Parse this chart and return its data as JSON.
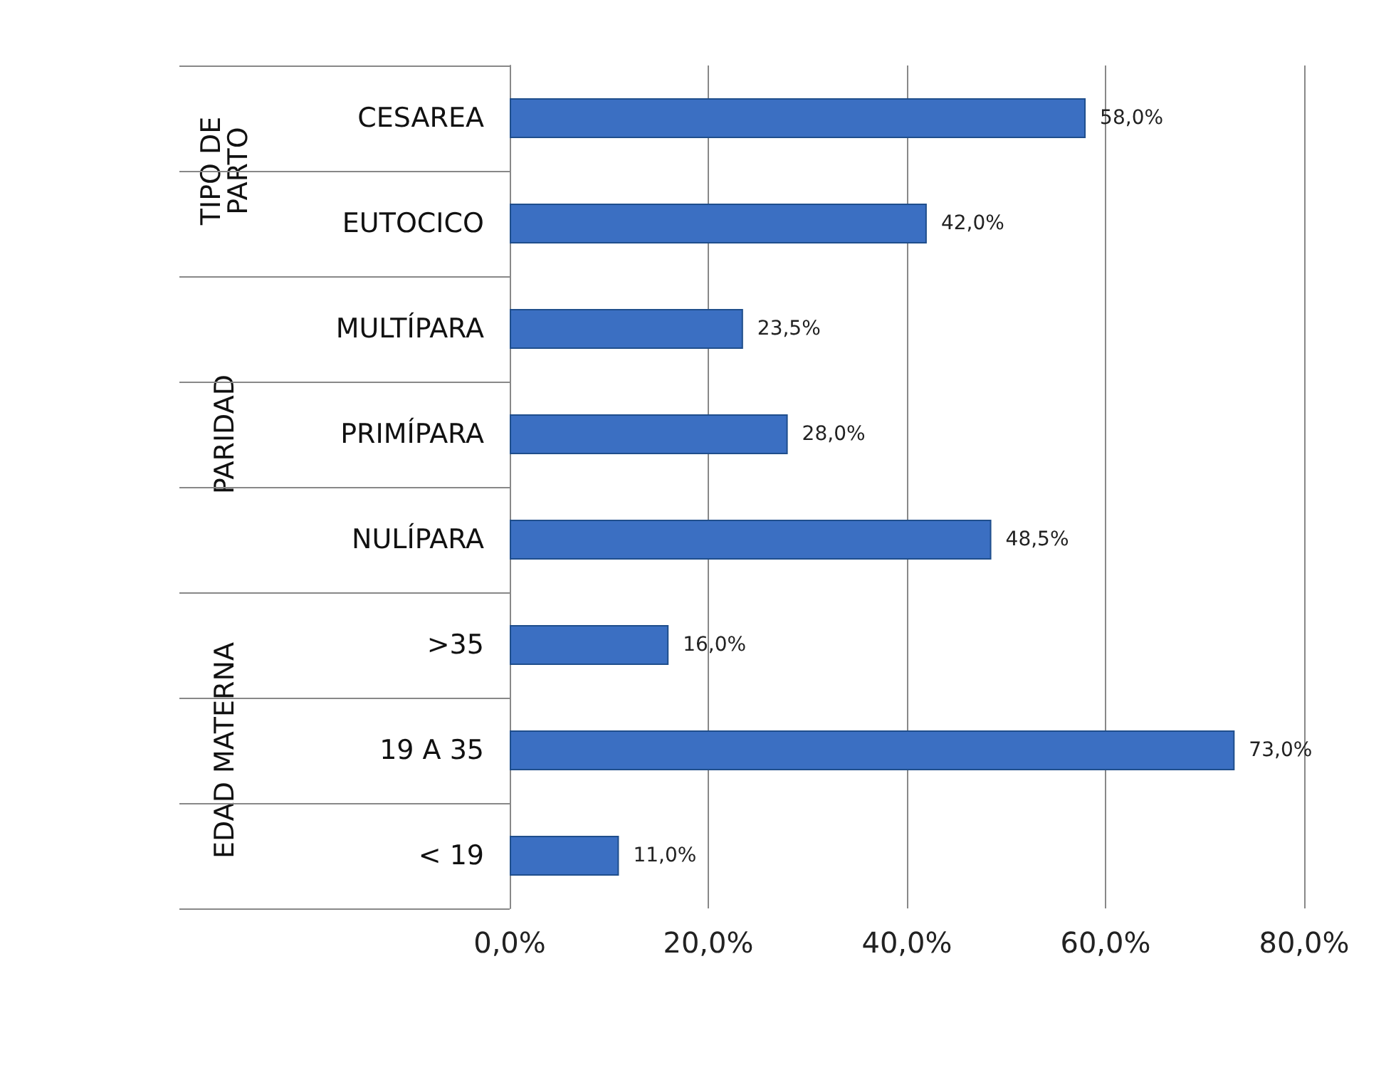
{
  "chart_data": {
    "type": "bar",
    "orientation": "horizontal",
    "categories": [
      "CESAREA",
      "EUTOCICO",
      "MULTÍPARA",
      "PRIMÍPARA",
      "NULÍPARA",
      ">35",
      "19 A 35",
      "< 19"
    ],
    "values": [
      58.0,
      42.0,
      23.5,
      28.0,
      48.5,
      16.0,
      73.0,
      11.0
    ],
    "value_labels": [
      "58,0%",
      "42,0%",
      "23,5%",
      "28,0%",
      "48,5%",
      "16,0%",
      "73,0%",
      "11,0%"
    ],
    "color": "#3b6fc2",
    "xlim": [
      0,
      80
    ],
    "xticks": [
      {
        "value": 0,
        "label": "0,0%"
      },
      {
        "value": 20,
        "label": "20,0%"
      },
      {
        "value": 40,
        "label": "40,0%"
      },
      {
        "value": 60,
        "label": "60,0%"
      },
      {
        "value": 80,
        "label": "80,0%"
      }
    ],
    "grid": "x",
    "annotations": [
      "TIPO DE\nPARTO",
      "PARIDAD",
      "EDAD MATERNA"
    ]
  }
}
